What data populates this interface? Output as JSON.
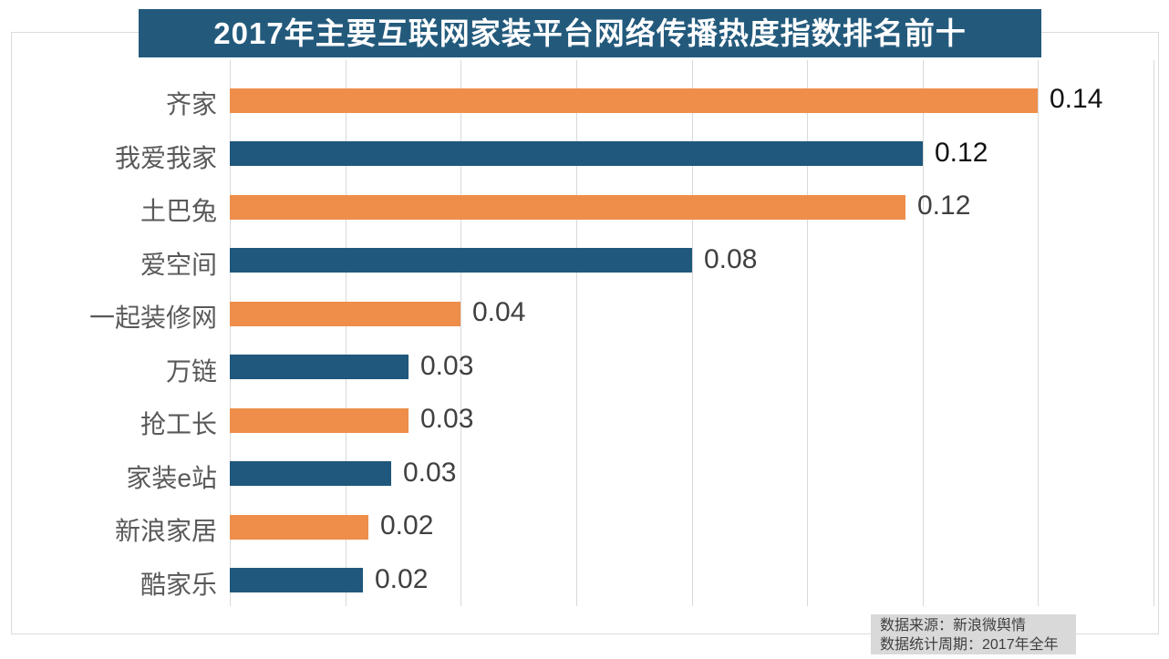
{
  "title": "2017年主要互联网家装平台网络传播热度指数排名前十",
  "source": {
    "line1": "数据来源：新浪微舆情",
    "line2": "数据统计周期：2017年全年"
  },
  "colors": {
    "title_bg": "#235a7c",
    "title_text": "#ffffff",
    "bar_orange": "#ee8e4a",
    "bar_blue": "#1f587c",
    "gridline": "#d9d9d9",
    "category_label": "#595959",
    "value_label": "#404040",
    "value_label_emphasis": "#111111",
    "source_bg": "#d9d9d9",
    "source_text": "#404040"
  },
  "chart_data": {
    "type": "bar",
    "orientation": "horizontal",
    "title": "2017年主要互联网家装平台网络传播热度指数排名前十",
    "categories": [
      "齐家",
      "我爱我家",
      "土巴兔",
      "爱空间",
      "一起装修网",
      "万链",
      "抢工长",
      "家装e站",
      "新浪家居",
      "酷家乐"
    ],
    "values": [
      0.14,
      0.12,
      0.12,
      0.08,
      0.04,
      0.03,
      0.03,
      0.03,
      0.02,
      0.02
    ],
    "values_precise_est": [
      0.14,
      0.12,
      0.117,
      0.08,
      0.04,
      0.031,
      0.031,
      0.028,
      0.024,
      0.023
    ],
    "xlabel": "",
    "ylabel": "",
    "xlim": [
      0,
      0.16
    ],
    "grid": "vertical",
    "grid_interval": 0.02,
    "legend": "none",
    "color_pattern": "alternating orange/blue starting with orange",
    "bars": [
      {
        "label": "齐家",
        "display": "0.14",
        "value": 0.14,
        "color": "orange",
        "emphasized_label": true
      },
      {
        "label": "我爱我家",
        "display": "0.12",
        "value": 0.12,
        "color": "blue",
        "emphasized_label": true
      },
      {
        "label": "土巴兔",
        "display": "0.12",
        "value": 0.117,
        "color": "orange",
        "emphasized_label": false
      },
      {
        "label": "爱空间",
        "display": "0.08",
        "value": 0.08,
        "color": "blue",
        "emphasized_label": false
      },
      {
        "label": "一起装修网",
        "display": "0.04",
        "value": 0.04,
        "color": "orange",
        "emphasized_label": false
      },
      {
        "label": "万链",
        "display": "0.03",
        "value": 0.031,
        "color": "blue",
        "emphasized_label": false
      },
      {
        "label": "抢工长",
        "display": "0.03",
        "value": 0.031,
        "color": "orange",
        "emphasized_label": false
      },
      {
        "label": "家装e站",
        "display": "0.03",
        "value": 0.028,
        "color": "blue",
        "emphasized_label": false
      },
      {
        "label": "新浪家居",
        "display": "0.02",
        "value": 0.024,
        "color": "orange",
        "emphasized_label": false
      },
      {
        "label": "酷家乐",
        "display": "0.02",
        "value": 0.023,
        "color": "blue",
        "emphasized_label": false
      }
    ]
  }
}
